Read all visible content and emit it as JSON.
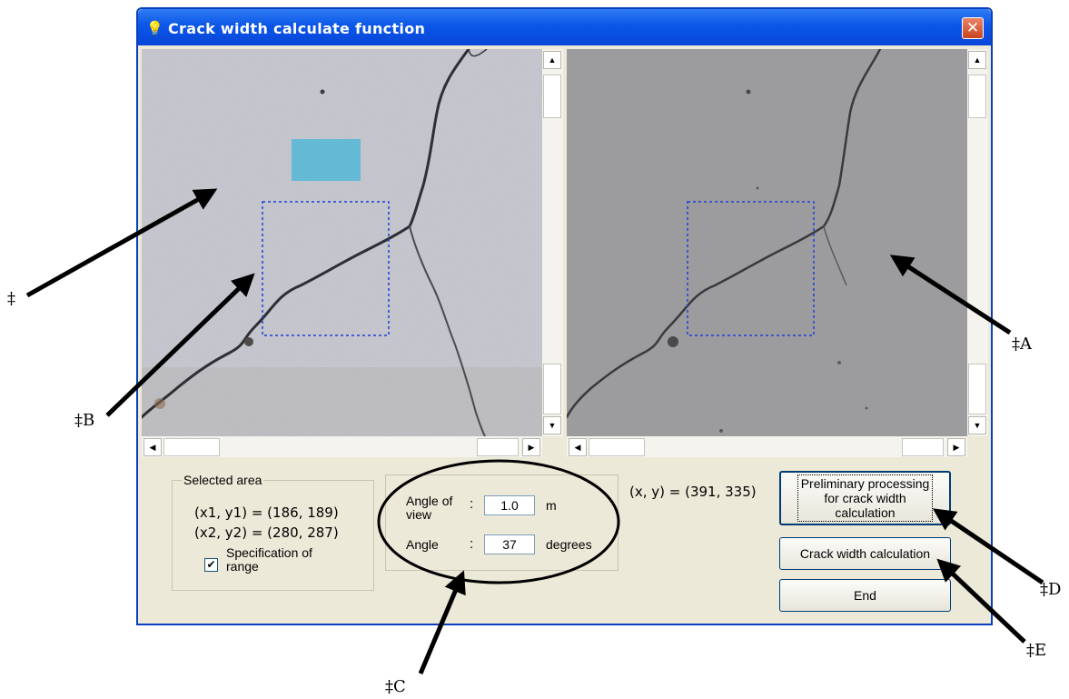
{
  "window": {
    "title": "Crack width calculate function",
    "close_symbol": "✕"
  },
  "selected_area": {
    "title": "Selected area",
    "line1": "(x1, y1) = (186, 189)",
    "line2": "(x2, y2) = (280, 287)",
    "checkbox_checked": true,
    "checkbox_label_line1": "Specification of",
    "checkbox_label_line2": "range"
  },
  "settings": {
    "angle_of_view_label_line1": "Angle of",
    "angle_of_view_label_line2": "view",
    "angle_of_view_colon": ":",
    "angle_of_view_value": "1.0",
    "angle_of_view_unit": "m",
    "angle_label": "Angle",
    "angle_colon": ":",
    "angle_value": "37",
    "angle_unit": "degrees"
  },
  "cursor_readout": "(x, y) = (391, 335)",
  "buttons": {
    "preliminary_line1": "Preliminary processing",
    "preliminary_line2": "for crack width",
    "preliminary_line3": "calculation",
    "crack_width": "Crack width calculation",
    "end": "End"
  },
  "annotations": {
    "mark1": "‡",
    "markA": "‡A",
    "markB": "‡B",
    "markC": "‡C",
    "markD": "‡D",
    "markE": "‡E"
  },
  "colors": {
    "titlebar": "#0b56e8",
    "window_bg": "#ece9d8",
    "original_image_bg": "#c5c6ce",
    "processed_image_bg": "#9c9c9f",
    "selection_box": "#1f3fd8"
  },
  "icons": {
    "title": "lightbulb-icon",
    "close": "close-icon"
  }
}
